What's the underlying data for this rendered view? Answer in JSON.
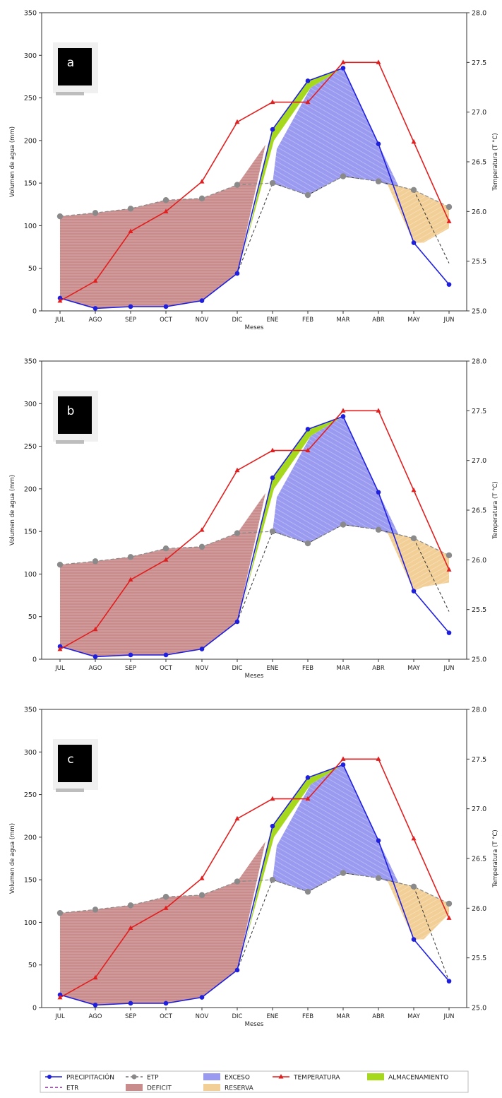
{
  "chart_data": [
    {
      "type": "line",
      "panel_label": "a",
      "categories": [
        "JUL",
        "AGO",
        "SEP",
        "OCT",
        "NOV",
        "DIC",
        "ENE",
        "FEB",
        "MAR",
        "ABR",
        "MAY",
        "JUN"
      ],
      "xlabel": "Meses",
      "ylabel": "Volumen de agua (mm)",
      "y2label": "Temperatura (T °C)",
      "ylim": [
        0,
        350
      ],
      "y2lim": [
        25.0,
        28.0
      ],
      "yticks": [
        "0",
        "50",
        "100",
        "150",
        "200",
        "250",
        "300",
        "350"
      ],
      "y2ticks": [
        "25.0",
        "25.5",
        "26.0",
        "26.5",
        "27.0",
        "27.5",
        "28.0"
      ],
      "series": [
        {
          "name": "PRECIPITACIÓN",
          "values": [
            15,
            3,
            5,
            5,
            12,
            44,
            213,
            270,
            285,
            196,
            80,
            31
          ]
        },
        {
          "name": "ETP",
          "values": [
            111,
            115,
            120,
            130,
            132,
            148,
            150,
            136,
            158,
            152,
            142,
            122
          ]
        },
        {
          "name": "ETR",
          "values": [
            15,
            3,
            5,
            5,
            12,
            44,
            150,
            136,
            158,
            152,
            142,
            56
          ]
        },
        {
          "name": "TEMPERATURA",
          "axis": "right",
          "values": [
            25.1,
            25.3,
            25.8,
            26.0,
            26.3,
            26.9,
            27.1,
            27.1,
            27.5,
            27.5,
            26.7,
            25.9
          ]
        }
      ],
      "bands": {
        "reserva_low": [
          80,
          97
        ]
      }
    },
    {
      "type": "line",
      "panel_label": "b",
      "categories": [
        "JUL",
        "AGO",
        "SEP",
        "OCT",
        "NOV",
        "DIC",
        "ENE",
        "FEB",
        "MAR",
        "ABR",
        "MAY",
        "JUN"
      ],
      "xlabel": "Meses",
      "ylabel": "Volumen de agua (mm)",
      "y2label": "Temperatura (T °C)",
      "ylim": [
        0,
        350
      ],
      "y2lim": [
        25.0,
        28.0
      ],
      "yticks": [
        "0",
        "50",
        "100",
        "150",
        "200",
        "250",
        "300",
        "350"
      ],
      "y2ticks": [
        "25.0",
        "25.5",
        "26.0",
        "26.5",
        "27.0",
        "27.5",
        "28.0"
      ],
      "series": [
        {
          "name": "PRECIPITACIÓN",
          "values": [
            15,
            3,
            5,
            5,
            12,
            44,
            213,
            270,
            285,
            196,
            80,
            31
          ]
        },
        {
          "name": "ETP",
          "values": [
            111,
            115,
            120,
            130,
            132,
            148,
            150,
            136,
            158,
            152,
            142,
            122
          ]
        },
        {
          "name": "ETR",
          "values": [
            15,
            3,
            5,
            5,
            12,
            44,
            150,
            136,
            158,
            152,
            142,
            56
          ]
        },
        {
          "name": "TEMPERATURA",
          "axis": "right",
          "values": [
            25.1,
            25.3,
            25.8,
            26.0,
            26.3,
            26.9,
            27.1,
            27.1,
            27.5,
            27.5,
            26.7,
            25.9
          ]
        }
      ],
      "bands": {
        "reserva_low": [
          85,
          90
        ]
      }
    },
    {
      "type": "line",
      "panel_label": "c",
      "categories": [
        "JUL",
        "AGO",
        "SEP",
        "OCT",
        "NOV",
        "DIC",
        "ENE",
        "FEB",
        "MAR",
        "ABR",
        "MAY",
        "JUN"
      ],
      "xlabel": "Meses",
      "ylabel": "Volumen de agua (mm)",
      "y2label": "Temperatura (T °C)",
      "ylim": [
        0,
        350
      ],
      "y2lim": [
        25.0,
        28.0
      ],
      "yticks": [
        "0",
        "50",
        "100",
        "150",
        "200",
        "250",
        "300",
        "350"
      ],
      "y2ticks": [
        "25.0",
        "25.5",
        "26.0",
        "26.5",
        "27.0",
        "27.5",
        "28.0"
      ],
      "series": [
        {
          "name": "PRECIPITACIÓN",
          "values": [
            15,
            3,
            5,
            5,
            12,
            44,
            213,
            270,
            285,
            196,
            80,
            31
          ]
        },
        {
          "name": "ETP",
          "values": [
            111,
            115,
            120,
            130,
            132,
            148,
            150,
            136,
            158,
            152,
            142,
            122
          ]
        },
        {
          "name": "ETR",
          "values": [
            15,
            3,
            5,
            5,
            12,
            44,
            150,
            136,
            158,
            152,
            142,
            31
          ]
        },
        {
          "name": "TEMPERATURA",
          "axis": "right",
          "values": [
            25.1,
            25.3,
            25.8,
            26.0,
            26.3,
            26.9,
            27.1,
            27.1,
            27.5,
            27.5,
            26.7,
            25.9
          ]
        }
      ],
      "bands": {
        "reserva_low": [
          80,
          110
        ]
      }
    }
  ],
  "legend": {
    "items": [
      {
        "key": "precip",
        "label": "PRECIPITACIÓN"
      },
      {
        "key": "etr",
        "label": "ETR"
      },
      {
        "key": "etp",
        "label": "ETP"
      },
      {
        "key": "deficit",
        "label": "DEFICIT"
      },
      {
        "key": "exceso",
        "label": "EXCESO"
      },
      {
        "key": "reserva",
        "label": "RESERVA"
      },
      {
        "key": "temp",
        "label": "TEMPERATURA"
      },
      {
        "key": "almac",
        "label": "ALMACENAMIENTO"
      }
    ]
  },
  "colors": {
    "precip": "#1f1fe0",
    "etp": "#7a7a7a",
    "etr": "#8a2b9a",
    "temp": "#e02020",
    "deficit": "#c98c8c",
    "exceso": "#9a9af0",
    "reserva": "#f2cf96",
    "almac": "#a6d81e"
  }
}
